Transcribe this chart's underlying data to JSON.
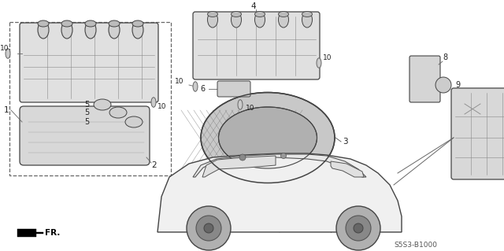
{
  "background_color": "#ffffff",
  "line_color": "#666666",
  "dark_color": "#444444",
  "part_code": "S5S3-B1000",
  "fig_w": 6.4,
  "fig_h": 3.19,
  "dpi": 100
}
